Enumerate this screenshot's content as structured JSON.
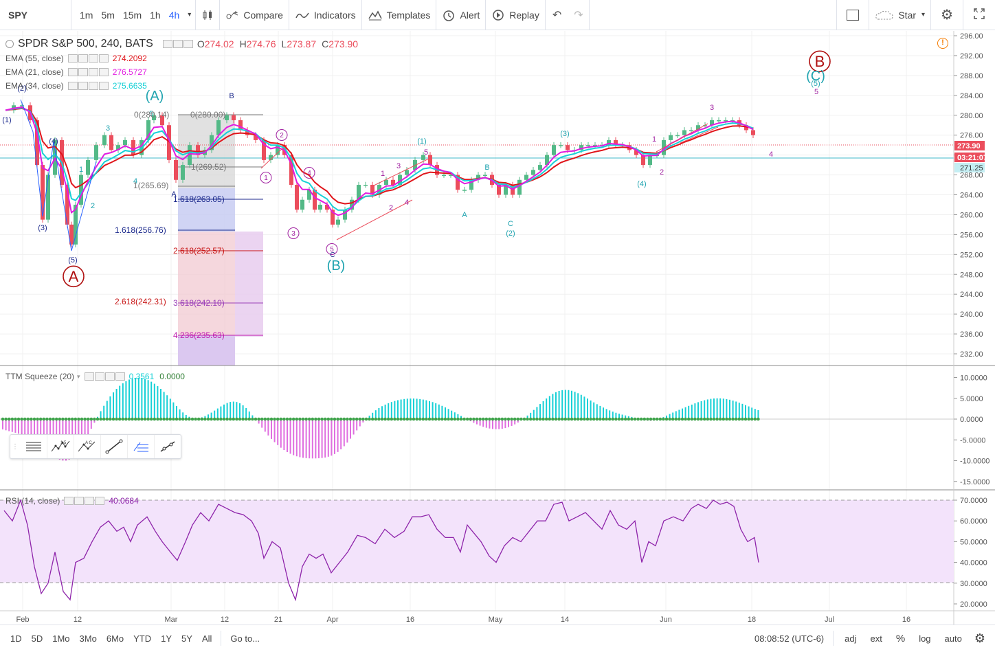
{
  "toolbar": {
    "symbol": "SPY",
    "intervals": [
      "1m",
      "5m",
      "15m",
      "1h",
      "4h"
    ],
    "active_interval": "4h",
    "compare_label": "Compare",
    "indicators_label": "Indicators",
    "templates_label": "Templates",
    "alert_label": "Alert",
    "replay_label": "Replay",
    "star_label": "Star"
  },
  "legend": {
    "title": "SPDR S&P 500, 240, BATS",
    "o_label": "O",
    "o": "274.02",
    "h_label": "H",
    "h": "274.76",
    "l_label": "L",
    "l": "273.87",
    "c_label": "C",
    "c": "273.90",
    "ema55_label": "EMA (55, close)",
    "ema55": "274.2092",
    "ema21_label": "EMA (21, close)",
    "ema21": "276.5727",
    "ema34_label": "EMA (34, close)",
    "ema34": "275.6635",
    "ttm_label": "TTM Squeeze (20)",
    "ttm_v1": "0.3561",
    "ttm_v2": "0.0000",
    "rsi_label": "RSI (14, close)",
    "rsi": "40.0684"
  },
  "colors": {
    "up": "#53b987",
    "down": "#eb4d5c",
    "ema55": "#e0151b",
    "ema21": "#e21be0",
    "ema34": "#17d0d6",
    "teal_label": "#20a4b0",
    "wave_purple": "#a020a0",
    "navy": "#1c2a8c",
    "dark_red": "#b01010",
    "rsi_line": "#8e24aa",
    "rsi_band": "#f3e3fb",
    "h_line": "#3fbac9"
  },
  "price_axis": {
    "ticks": [
      "296.00",
      "292.00",
      "288.00",
      "284.00",
      "280.00",
      "276.00",
      "272.00",
      "268.00",
      "264.00",
      "260.00",
      "256.00",
      "252.00",
      "248.00",
      "244.00",
      "240.00",
      "236.00",
      "232.00"
    ],
    "last_price": "273.90",
    "countdown": "03:21:07",
    "hline_price": "271.25"
  },
  "ttm_axis": {
    "ticks": [
      "10.0000",
      "5.0000",
      "0.0000",
      "-5.0000",
      "-10.0000",
      "-15.0000"
    ]
  },
  "rsi_axis": {
    "ticks": [
      "70.0000",
      "60.0000",
      "50.0000",
      "40.0000",
      "30.0000",
      "20.0000"
    ]
  },
  "time_axis": {
    "labels": [
      "Feb",
      "12",
      "Mar",
      "12",
      "21",
      "Apr",
      "16",
      "May",
      "14",
      "Jun",
      "18",
      "Jul",
      "16"
    ]
  },
  "fib": {
    "left": [
      "0(280.14)",
      "1(265.69)",
      "1.618(256.76)",
      "2.618(242.31)"
    ],
    "right": [
      "0(280.00)",
      "1(269.52)",
      "1.618(263.05)",
      "2.618(252.57)",
      "3.618(242.10)",
      "4.236(235.63)"
    ]
  },
  "waves": {
    "big_a": "A",
    "big_b": "B",
    "paren_a": "(A)",
    "paren_b": "(B)",
    "paren_c": "(C)",
    "labels": [
      "(1)",
      "(2)",
      "(3)",
      "(4)",
      "(5)",
      "1",
      "2",
      "3",
      "4",
      "5",
      "A",
      "B",
      "C",
      "(1)",
      "(2)",
      "(3)",
      "(4)",
      "(5)"
    ]
  },
  "bottom": {
    "ranges": [
      "1D",
      "5D",
      "1Mo",
      "3Mo",
      "6Mo",
      "YTD",
      "1Y",
      "5Y",
      "All"
    ],
    "goto": "Go to...",
    "time": "08:08:52 (UTC-6)",
    "adj": "adj",
    "ext": "ext",
    "pct": "%",
    "log": "log",
    "auto": "auto"
  }
}
